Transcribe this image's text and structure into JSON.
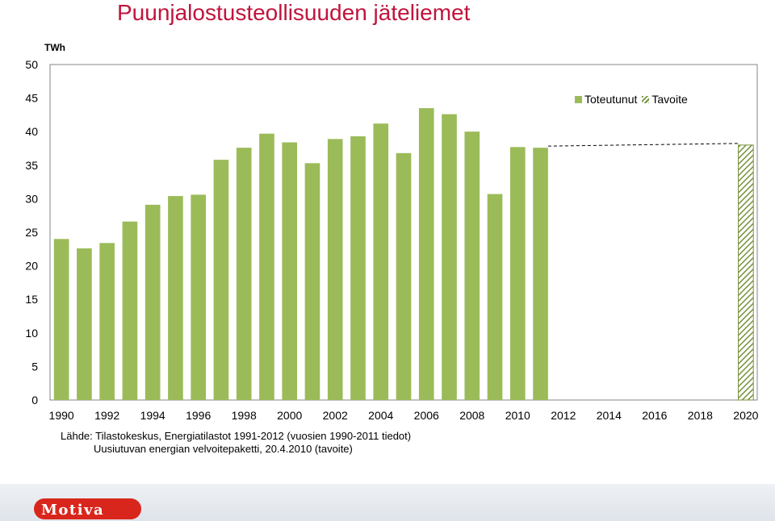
{
  "title": "Puunjalostusteollisuuden jäteliemet",
  "unit": "TWh",
  "legend": {
    "actual": "Toteutunut",
    "target": "Tavoite"
  },
  "source": {
    "line1": "Lähde: Tilastokeskus, Energiatilastot 1991-2012 (vuosien 1990-2011 tiedot)",
    "line2": "Uusiutuvan energian velvoitepaketti, 20.4.2010 (tavoite)"
  },
  "logo_text": "Motiva",
  "colors": {
    "title": "#c0143c",
    "bar": "#9bbb59",
    "target_hatch": "#76923c",
    "logo": "#d9261c"
  },
  "chart_data": {
    "type": "bar",
    "ylim": [
      0,
      50
    ],
    "yticks": [
      0,
      5,
      10,
      15,
      20,
      25,
      30,
      35,
      40,
      45,
      50
    ],
    "xtick_labels": [
      "1990",
      "1992",
      "1994",
      "1996",
      "1998",
      "2000",
      "2002",
      "2004",
      "2006",
      "2008",
      "2010",
      "2012",
      "2014",
      "2016",
      "2018",
      "2020"
    ],
    "grid": false,
    "legend_position": "top-right",
    "series": [
      {
        "name": "Toteutunut",
        "x": [
          1990,
          1991,
          1992,
          1993,
          1994,
          1995,
          1996,
          1997,
          1998,
          1999,
          2000,
          2001,
          2002,
          2003,
          2004,
          2005,
          2006,
          2007,
          2008,
          2009,
          2010,
          2011
        ],
        "values": [
          24.0,
          22.6,
          23.4,
          26.6,
          29.1,
          30.4,
          30.6,
          35.8,
          37.6,
          39.7,
          38.4,
          35.3,
          38.9,
          39.3,
          41.2,
          36.8,
          43.5,
          42.6,
          40.0,
          30.7,
          37.7,
          37.6
        ]
      },
      {
        "name": "Tavoite",
        "x": [
          2020
        ],
        "values": [
          38.0
        ]
      }
    ],
    "trend_line": {
      "from": [
        2011,
        37.6
      ],
      "to": [
        2020,
        38.0
      ],
      "style": "dashed"
    }
  }
}
